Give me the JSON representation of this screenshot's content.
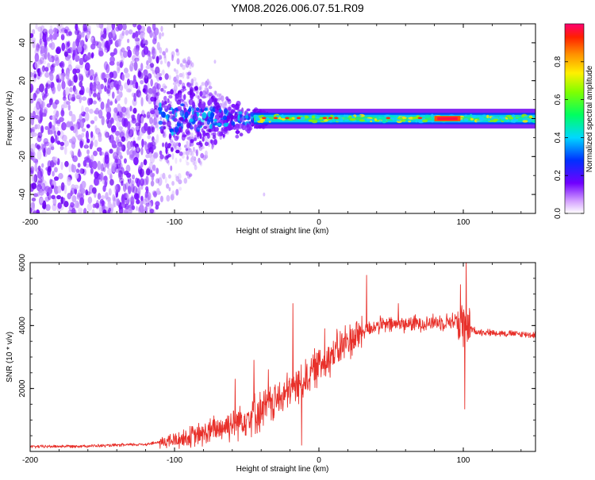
{
  "title": "YM08.2026.006.07.51.R09",
  "chart_data": [
    {
      "type": "heatmap",
      "name": "spectrogram",
      "xlabel": "Height of straight line (km)",
      "ylabel": "Frequency (Hz)",
      "xlim": [
        -200,
        150
      ],
      "ylim": [
        -50,
        50
      ],
      "x_ticks": [
        -200,
        -100,
        0,
        100
      ],
      "x_tick_labels": [
        "-200",
        "-100",
        "0",
        "100"
      ],
      "y_ticks": [
        -40,
        -20,
        0,
        20,
        40
      ],
      "y_tick_labels": [
        "-40",
        "-20",
        "0",
        "20",
        "40"
      ],
      "colorbar": {
        "label": "Normalized spectral amplitude",
        "range": [
          0,
          1
        ],
        "ticks": [
          0.0,
          0.2,
          0.4,
          0.6,
          0.8
        ],
        "tick_labels": [
          "0.0",
          "0.2",
          "0.4",
          "0.6",
          "0.8"
        ]
      },
      "features": {
        "noise_region_x": [
          -200,
          -110
        ],
        "transition_x": [
          -110,
          -40
        ],
        "band_center_hz": 0,
        "band_halfwidth_hz": 3,
        "peak_amplitude_x": [
          80,
          98
        ]
      }
    },
    {
      "type": "line",
      "name": "snr",
      "xlabel": "Height of straight line (km)",
      "ylabel": "SNR (10 * v/v)",
      "xlim": [
        -200,
        150
      ],
      "ylim": [
        0,
        6000
      ],
      "x_ticks": [
        -200,
        -100,
        0,
        100
      ],
      "x_tick_labels": [
        "-200",
        "-100",
        "0",
        "100"
      ],
      "y_ticks": [
        2000,
        4000,
        6000
      ],
      "y_tick_labels": [
        "2000",
        "4000",
        "6000"
      ],
      "color": "#e8302a",
      "trend": {
        "x": [
          -200,
          -150,
          -120,
          -100,
          -80,
          -60,
          -40,
          -20,
          -10,
          0,
          10,
          20,
          30,
          40,
          60,
          80,
          95,
          100,
          110,
          150
        ],
        "y": [
          150,
          180,
          230,
          350,
          550,
          900,
          1300,
          1900,
          2300,
          2750,
          3100,
          3500,
          3800,
          4000,
          4050,
          4100,
          4150,
          4000,
          3800,
          3700
        ]
      },
      "spikes": [
        {
          "x": -58,
          "y": 2300
        },
        {
          "x": -45,
          "y": 2900
        },
        {
          "x": -35,
          "y": 2600
        },
        {
          "x": -18,
          "y": 4700
        },
        {
          "x": -8,
          "y": 2100
        },
        {
          "x": 4,
          "y": 3900
        },
        {
          "x": 33,
          "y": 5600
        },
        {
          "x": 55,
          "y": 4700
        },
        {
          "x": 98,
          "y": 5300
        },
        {
          "x": 102,
          "y": 6200
        },
        {
          "x": 101,
          "y": 1350
        },
        {
          "x": -12,
          "y": 200
        }
      ]
    }
  ]
}
